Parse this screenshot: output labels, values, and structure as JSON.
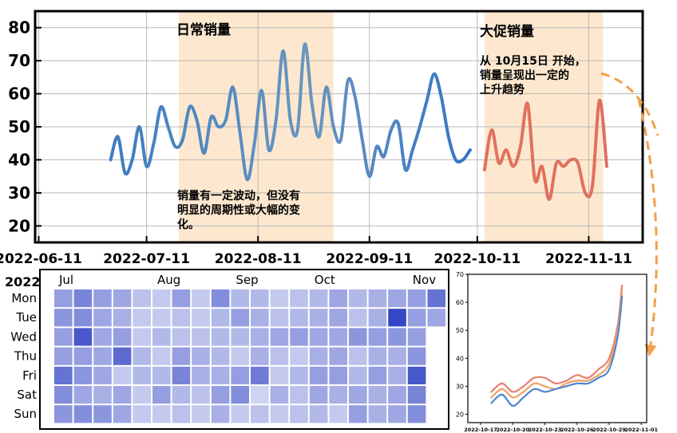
{
  "chart_data": [
    {
      "type": "line",
      "title": "",
      "xlabel": "",
      "ylabel": "",
      "x_tick_labels": [
        "2022-06-11",
        "2022-07-11",
        "2022-08-11",
        "2022-09-11",
        "2022-10-11",
        "2022-11-11"
      ],
      "x_tick_dates": [
        "2022-06-11",
        "2022-07-11",
        "2022-08-11",
        "2022-09-11",
        "2022-10-11",
        "2022-11-11"
      ],
      "y_ticks": [
        20,
        30,
        40,
        50,
        60,
        70,
        80
      ],
      "ylim": [
        15,
        85
      ],
      "xlim": [
        "2022-06-10",
        "2022-11-26"
      ],
      "grid": true,
      "regions": [
        {
          "label": "日常销量",
          "start": "2022-07-20",
          "end": "2022-09-01",
          "color": "#fde8cf"
        },
        {
          "label": "大促销量",
          "start": "2022-10-13",
          "end": "2022-11-15",
          "color": "#fde8cf"
        }
      ],
      "annotations": [
        {
          "lines": [
            "销量有一定波动，但没有",
            "明显的周期性或大幅的变",
            "化。"
          ]
        },
        {
          "lines": [
            "从 10月15日 开始，",
            "销量呈现出一定的",
            "上升趋势"
          ]
        }
      ],
      "series": [
        {
          "color": "#3d7cc0",
          "points": [
            [
              "2022-07-01",
              40
            ],
            [
              "2022-07-03",
              47
            ],
            [
              "2022-07-05",
              36
            ],
            [
              "2022-07-07",
              40
            ],
            [
              "2022-07-09",
              50
            ],
            [
              "2022-07-11",
              38
            ],
            [
              "2022-07-13",
              45
            ],
            [
              "2022-07-15",
              56
            ],
            [
              "2022-07-17",
              50
            ],
            [
              "2022-07-19",
              44
            ],
            [
              "2022-07-21",
              46
            ],
            [
              "2022-07-23",
              56
            ],
            [
              "2022-07-25",
              52
            ],
            [
              "2022-07-27",
              42
            ],
            [
              "2022-07-29",
              53
            ],
            [
              "2022-07-31",
              50
            ],
            [
              "2022-08-02",
              52
            ],
            [
              "2022-08-04",
              62
            ],
            [
              "2022-08-06",
              48
            ],
            [
              "2022-08-08",
              34
            ],
            [
              "2022-08-10",
              45
            ],
            [
              "2022-08-12",
              61
            ],
            [
              "2022-08-14",
              43
            ],
            [
              "2022-08-16",
              52
            ],
            [
              "2022-08-18",
              73
            ],
            [
              "2022-08-20",
              52
            ],
            [
              "2022-08-22",
              49
            ],
            [
              "2022-08-24",
              75
            ],
            [
              "2022-08-26",
              57
            ],
            [
              "2022-08-28",
              47
            ],
            [
              "2022-08-30",
              62
            ],
            [
              "2022-09-01",
              50
            ],
            [
              "2022-09-03",
              46
            ],
            [
              "2022-09-05",
              64
            ],
            [
              "2022-09-07",
              59
            ],
            [
              "2022-09-09",
              46
            ],
            [
              "2022-09-11",
              35
            ],
            [
              "2022-09-13",
              44
            ],
            [
              "2022-09-15",
              41
            ],
            [
              "2022-09-17",
              49
            ],
            [
              "2022-09-19",
              51
            ],
            [
              "2022-09-21",
              37
            ],
            [
              "2022-09-23",
              43
            ],
            [
              "2022-09-25",
              50
            ],
            [
              "2022-09-27",
              58
            ],
            [
              "2022-09-29",
              66
            ],
            [
              "2022-10-01",
              59
            ],
            [
              "2022-10-03",
              47
            ],
            [
              "2022-10-05",
              40
            ],
            [
              "2022-10-07",
              40
            ],
            [
              "2022-10-09",
              43
            ]
          ]
        },
        {
          "color": "#e0715e",
          "points": [
            [
              "2022-10-13",
              37
            ],
            [
              "2022-10-15",
              49
            ],
            [
              "2022-10-17",
              39
            ],
            [
              "2022-10-19",
              43
            ],
            [
              "2022-10-21",
              38
            ],
            [
              "2022-10-23",
              44
            ],
            [
              "2022-10-25",
              57
            ],
            [
              "2022-10-27",
              34
            ],
            [
              "2022-10-29",
              38
            ],
            [
              "2022-10-31",
              28
            ],
            [
              "2022-11-02",
              39
            ],
            [
              "2022-11-04",
              38
            ],
            [
              "2022-11-06",
              40
            ],
            [
              "2022-11-08",
              39
            ],
            [
              "2022-11-10",
              30
            ],
            [
              "2022-11-12",
              32
            ],
            [
              "2022-11-14",
              58
            ],
            [
              "2022-11-16",
              38
            ]
          ]
        }
      ]
    },
    {
      "type": "heatmap",
      "title": "",
      "year_label": "2022",
      "weekdays": [
        "Mon",
        "Tue",
        "Wed",
        "Thu",
        "Fri",
        "Sat",
        "Sun"
      ],
      "months": [
        {
          "label": "Jul",
          "col": 0
        },
        {
          "label": "Aug",
          "col": 5
        },
        {
          "label": "Sep",
          "col": 9
        },
        {
          "label": "Oct",
          "col": 13
        },
        {
          "label": "Nov",
          "col": 18
        }
      ],
      "color_scale": [
        "#eaedf9",
        "#2c3ec2"
      ],
      "value_range": [
        0,
        1
      ],
      "weeks": [
        [
          0.45,
          0.5,
          0.45,
          0.45,
          0.7,
          0.55,
          0.5
        ],
        [
          0.6,
          0.55,
          0.85,
          0.45,
          0.5,
          0.4,
          0.55
        ],
        [
          0.45,
          0.4,
          0.4,
          0.4,
          0.4,
          0.35,
          0.5
        ],
        [
          0.4,
          0.35,
          0.45,
          0.75,
          0.2,
          0.4,
          0.4
        ],
        [
          0.25,
          0.2,
          0.2,
          0.3,
          0.3,
          0.2,
          0.2
        ],
        [
          0.2,
          0.2,
          0.3,
          0.2,
          0.3,
          0.45,
          0.2
        ],
        [
          0.45,
          0.25,
          0.25,
          0.45,
          0.6,
          0.3,
          0.25
        ],
        [
          0.2,
          0.2,
          0.25,
          0.35,
          0.35,
          0.25,
          0.2
        ],
        [
          0.55,
          0.3,
          0.3,
          0.3,
          0.35,
          0.45,
          0.35
        ],
        [
          0.3,
          0.45,
          0.3,
          0.2,
          0.45,
          0.55,
          0.2
        ],
        [
          0.3,
          0.35,
          0.35,
          0.35,
          0.65,
          0.15,
          0.25
        ],
        [
          0.2,
          0.25,
          0.4,
          0.25,
          0.2,
          0.35,
          0.2
        ],
        [
          0.25,
          0.3,
          0.45,
          0.2,
          0.3,
          0.25,
          0.25
        ],
        [
          0.3,
          0.35,
          0.4,
          0.35,
          0.45,
          0.4,
          0.3
        ],
        [
          0.4,
          0.4,
          0.4,
          0.4,
          0.45,
          0.35,
          0.2
        ],
        [
          0.3,
          0.25,
          0.5,
          0.25,
          0.3,
          0.4,
          0.45
        ],
        [
          0.35,
          0.35,
          0.45,
          0.35,
          0.45,
          0.35,
          0.35
        ],
        [
          0.4,
          0.95,
          0.5,
          0.35,
          0.35,
          0.4,
          0.4
        ],
        [
          0.45,
          0.45,
          0.45,
          0.5,
          0.85,
          0.6,
          0.55
        ],
        [
          0.7,
          0.4,
          null,
          null,
          null,
          null,
          null
        ]
      ]
    },
    {
      "type": "line",
      "title": "",
      "xlabel": "",
      "ylabel": "",
      "x_tick_labels": [
        "2022-10-17",
        "2022-10-20",
        "2022-10-23",
        "2022-10-26",
        "2022-10-29",
        "2022-11-01"
      ],
      "x_tick_days": [
        0,
        3,
        6,
        9,
        12,
        15
      ],
      "y_ticks": [
        20,
        30,
        40,
        50,
        60,
        70
      ],
      "ylim": [
        17,
        70
      ],
      "xlim_days": [
        0,
        15.5
      ],
      "grid": false,
      "series": [
        {
          "color": "#e8806f",
          "points": [
            [
              1,
              28
            ],
            [
              2,
              31
            ],
            [
              3,
              28
            ],
            [
              4,
              30
            ],
            [
              5,
              33
            ],
            [
              6,
              33
            ],
            [
              7,
              31
            ],
            [
              8,
              32
            ],
            [
              9,
              34
            ],
            [
              10,
              33
            ],
            [
              11,
              36
            ],
            [
              12,
              40
            ],
            [
              12.8,
              52
            ],
            [
              13.2,
              66
            ]
          ]
        },
        {
          "color": "#f0a062",
          "points": [
            [
              1,
              26
            ],
            [
              2,
              29
            ],
            [
              3,
              26
            ],
            [
              4,
              28
            ],
            [
              5,
              31
            ],
            [
              6,
              30
            ],
            [
              7,
              29
            ],
            [
              8,
              31
            ],
            [
              9,
              32
            ],
            [
              10,
              32
            ],
            [
              11,
              34
            ],
            [
              12,
              38
            ],
            [
              12.8,
              50
            ],
            [
              13.2,
              63
            ]
          ]
        },
        {
          "color": "#4f86d0",
          "points": [
            [
              1,
              24
            ],
            [
              2,
              27
            ],
            [
              3,
              23
            ],
            [
              4,
              26
            ],
            [
              5,
              29
            ],
            [
              6,
              28
            ],
            [
              7,
              29
            ],
            [
              8,
              30
            ],
            [
              9,
              31
            ],
            [
              10,
              31
            ],
            [
              11,
              33
            ],
            [
              12,
              36
            ],
            [
              12.8,
              48
            ],
            [
              13.2,
              62
            ]
          ]
        }
      ]
    }
  ]
}
